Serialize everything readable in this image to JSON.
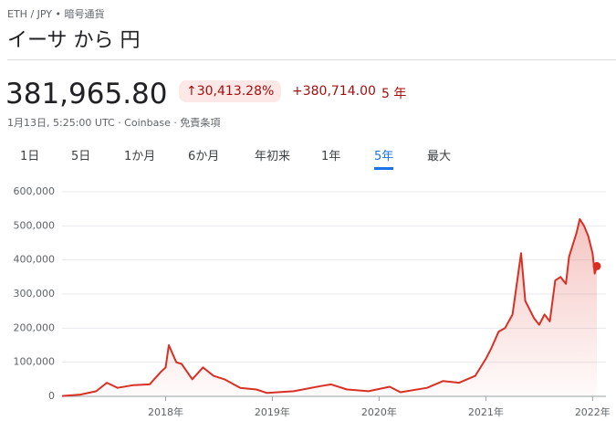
{
  "header": {
    "breadcrumb": "ETH / JPY • 暗号通貨",
    "title": "イーサ から 円"
  },
  "quote": {
    "price": "381,965.80",
    "change_percent": "30,413.28%",
    "change": "+380,714.00",
    "period": "5 年",
    "timestamp": "1月13日, 5:25:00 UTC · Coinbase · 免責条項"
  },
  "tabs": {
    "items": [
      "1日",
      "5日",
      "1か月",
      "6か月",
      "年初来",
      "1年",
      "5年",
      "最大"
    ],
    "active": 6
  },
  "chart_data": {
    "type": "line",
    "color": "#d93025",
    "x": [
      2017.03,
      2017.2,
      2017.35,
      2017.45,
      2017.55,
      2017.7,
      2017.85,
      2017.95,
      2018.0,
      2018.03,
      2018.1,
      2018.15,
      2018.25,
      2018.35,
      2018.45,
      2018.55,
      2018.7,
      2018.85,
      2018.95,
      2019.2,
      2019.45,
      2019.55,
      2019.7,
      2019.9,
      2020.1,
      2020.2,
      2020.45,
      2020.6,
      2020.75,
      2020.9,
      2021.0,
      2021.05,
      2021.12,
      2021.18,
      2021.25,
      2021.33,
      2021.37,
      2021.45,
      2021.5,
      2021.55,
      2021.6,
      2021.65,
      2021.7,
      2021.75,
      2021.78,
      2021.85,
      2021.88,
      2021.92,
      2021.96,
      2022.0,
      2022.02,
      2022.04
    ],
    "values": [
      1000,
      5000,
      15000,
      40000,
      25000,
      33000,
      35000,
      70000,
      85000,
      150000,
      100000,
      95000,
      50000,
      85000,
      60000,
      50000,
      25000,
      20000,
      10000,
      15000,
      30000,
      35000,
      20000,
      15000,
      28000,
      12000,
      25000,
      45000,
      40000,
      60000,
      110000,
      140000,
      190000,
      200000,
      240000,
      420000,
      280000,
      230000,
      210000,
      240000,
      220000,
      340000,
      350000,
      330000,
      410000,
      480000,
      520000,
      500000,
      470000,
      420000,
      360000,
      381965.8
    ],
    "xlim": [
      2017.03,
      2022.04
    ],
    "xticks": [
      {
        "value": 2018,
        "label": "2018年"
      },
      {
        "value": 2019,
        "label": "2019年"
      },
      {
        "value": 2020,
        "label": "2020年"
      },
      {
        "value": 2021,
        "label": "2021年"
      },
      {
        "value": 2022,
        "label": "2022年"
      }
    ],
    "ylim": [
      0,
      600000
    ],
    "yticks": [
      0,
      {
        "value": 100000,
        "label": "100,000"
      },
      {
        "value": 200000,
        "label": "200,000"
      },
      {
        "value": 300000,
        "label": "300,000"
      },
      {
        "value": 400000,
        "label": "400,000"
      },
      {
        "value": 500000,
        "label": "500,000"
      },
      {
        "value": 600000,
        "label": "600,000"
      }
    ],
    "grid": true
  }
}
